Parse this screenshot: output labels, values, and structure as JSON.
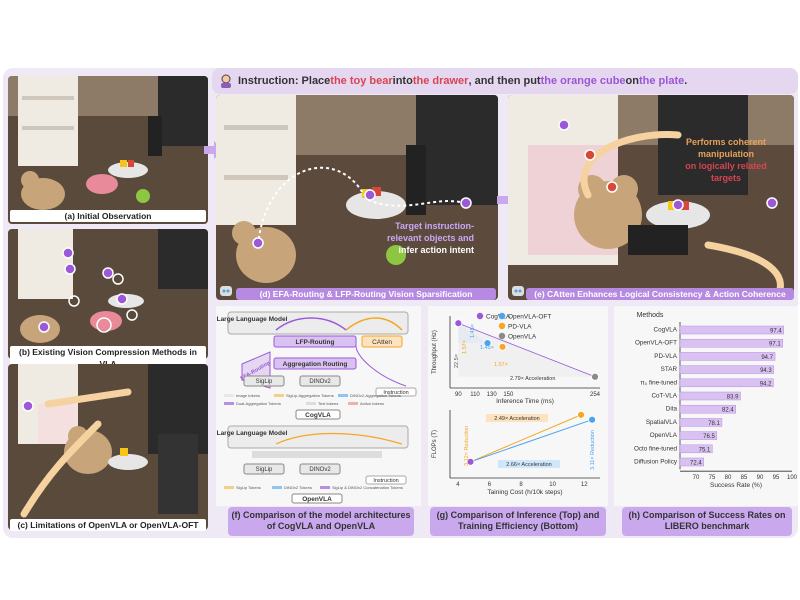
{
  "instruction": {
    "prefix": "Instruction: Place ",
    "obj1": "the toy bear",
    "mid1": " into ",
    "obj2": "the drawer",
    "mid2": ", and then put ",
    "obj3": "the orange cube",
    "mid3": " on ",
    "obj4": "the plate",
    "suffix": "."
  },
  "captions": {
    "a": "(a) Initial Observation",
    "b": "(b) Existing Vision Compression Methods in VLA",
    "c": "(c) Limitations of OpenVLA or OpenVLA-OFT",
    "d": "(d) EFA-Routing & LFP-Routing Vision Sparsification",
    "e": "(e) CAtten Enhances Logical Consistency & Action Coherence",
    "f": "(f) Comparison of the model architectures of CogVLA and OpenVLA",
    "g": "(g) Comparison of Inference (Top) and Training Efficiency (Bottom)",
    "h": "(h) Comparison of Success Rates on LIBERO benchmark"
  },
  "annotations": {
    "d_text1": "Target instruction-",
    "d_text2": "relevant objects and",
    "d_text3": "infer action intent",
    "e_text1": "Performs coherent",
    "e_text2": "manipulation",
    "e_text3": "on logically related",
    "e_text4": "targets"
  },
  "arch": {
    "llm": "Large Language Model",
    "lfp": "LFP-Routing",
    "catten": "CAtten",
    "efa": "EFA-Routing",
    "agg": "Aggregation Routing",
    "siglip": "SigLip",
    "dinov2": "DINOv2",
    "instruction": "Instruction",
    "cogvla": "CogVLA",
    "openvla": "OpenVLA",
    "legend_top": [
      "Image tokens",
      "SigLip-Aggregation Tokens",
      "DINOv2-Aggregation Tokens",
      "Dual-Aggregation Tokens",
      "Text tokens",
      "Action tokens"
    ],
    "legend_bottom": [
      "SigLip Tokens",
      "DINOv2 Tokens",
      "SigLip & DINOv2 Concatenation Tokens"
    ]
  },
  "chart_data": [
    {
      "type": "scatter",
      "legend": [
        "CogVLA",
        "OpenVLA-OFT",
        "PD-VLA",
        "OpenVLA"
      ],
      "colors": {
        "CogVLA": "#9b59d9",
        "OpenVLA-OFT": "#4aa3f0",
        "PD-VLA": "#f5a623",
        "OpenVLA": "#8a8a8a"
      },
      "xlabel": "Inference Time (ms)",
      "ylabel": "Throughput (Hz)",
      "xticks": [
        "90",
        "110",
        "130",
        "150",
        "254"
      ],
      "xlim": [
        80,
        260
      ],
      "points": [
        {
          "name": "CogVLA",
          "x": 90,
          "y": 22.5
        },
        {
          "name": "OpenVLA-OFT",
          "x": 125,
          "y": 15.6
        },
        {
          "name": "PD-VLA",
          "x": 143,
          "y": 14.3
        },
        {
          "name": "OpenVLA",
          "x": 254,
          "y": 3.9
        }
      ],
      "annotations": [
        "22.5×",
        "1.57×",
        "1.45×",
        "1.45×",
        "1.57×",
        "2.79× Acceleration"
      ]
    },
    {
      "type": "scatter",
      "xlabel": "Taining Cost (h/10k steps)",
      "ylabel": "FLOPs (T)",
      "xticks": [
        "4",
        "6",
        "8",
        "10",
        "12"
      ],
      "xlim": [
        3.5,
        13
      ],
      "points": [
        {
          "name": "CogVLA",
          "x": 4.8,
          "y": 1.0
        },
        {
          "name": "PD-VLA",
          "x": 11.8,
          "y": 3.9
        },
        {
          "name": "OpenVLA-OFT",
          "x": 12.5,
          "y": 3.6
        }
      ],
      "annotations": [
        "2.49× Acceleration",
        "2.66× Acceleration",
        "3.12× Reduction",
        "3.11× Reduction"
      ]
    },
    {
      "type": "bar",
      "orientation": "horizontal",
      "ylabel": "Methods",
      "xlabel": "Success Rate (%)",
      "xlim": [
        65,
        100
      ],
      "xticks": [
        "70",
        "75",
        "80",
        "85",
        "90",
        "95",
        "100"
      ],
      "categories": [
        "CogVLA",
        "OpenVLA-OFT",
        "PD-VLA",
        "STAR",
        "π₀ fine-tuned",
        "CoT-VLA",
        "Dita",
        "SpatialVLA",
        "OpenVLA",
        "Octo fine-tuned",
        "Diffusion Policy"
      ],
      "values": [
        97.4,
        97.1,
        94.7,
        94.3,
        94.2,
        83.9,
        82.4,
        78.1,
        76.5,
        75.1,
        72.4
      ],
      "labels": [
        "97.4",
        "97.1",
        "94.7",
        "94.3",
        "94.2",
        "83.9",
        "82.4",
        "78.1",
        "76.5",
        "75.1",
        "72.4"
      ],
      "bar_color": "#d9c2f2"
    }
  ]
}
